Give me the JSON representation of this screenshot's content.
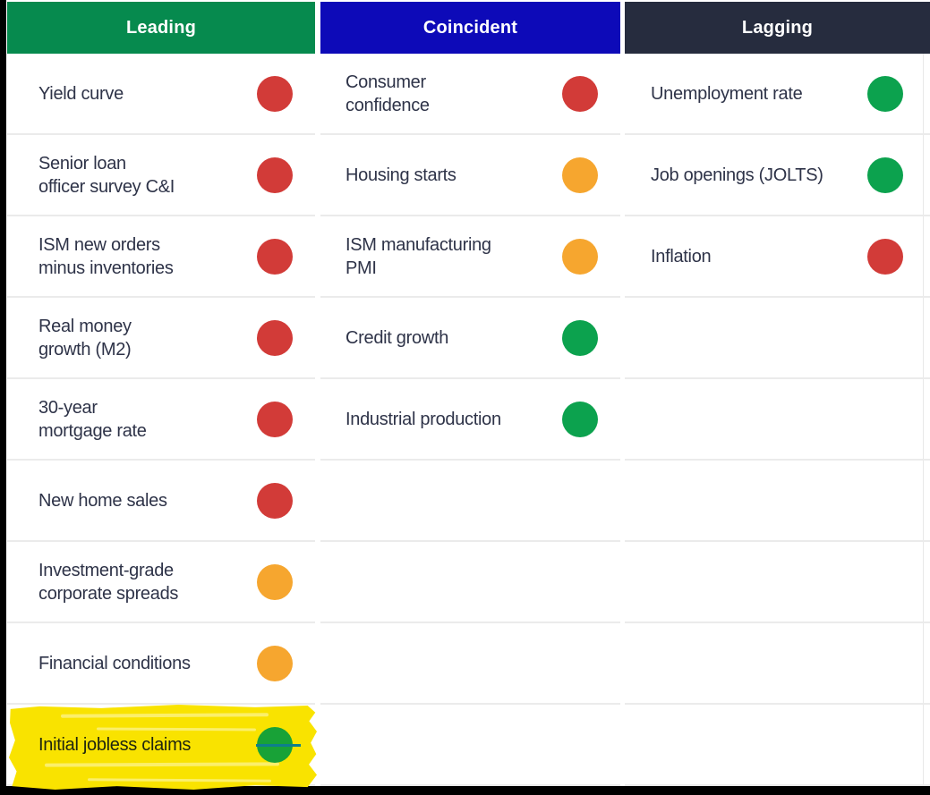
{
  "chart_data": {
    "type": "table",
    "columns": [
      {
        "header": "Leading",
        "header_color": "#068a4e",
        "indicators": [
          {
            "label": "Yield curve",
            "status": "red"
          },
          {
            "label": "Senior loan\nofficer survey C&I",
            "status": "red"
          },
          {
            "label": "ISM new orders\nminus inventories",
            "status": "red"
          },
          {
            "label": "Real money\ngrowth (M2)",
            "status": "red"
          },
          {
            "label": "30-year\nmortgage rate",
            "status": "red"
          },
          {
            "label": "New home sales",
            "status": "red"
          },
          {
            "label": "Investment-grade\ncorporate spreads",
            "status": "amber"
          },
          {
            "label": "Financial conditions",
            "status": "amber"
          },
          {
            "label": "Initial jobless claims",
            "status": "green",
            "highlighted": true
          }
        ]
      },
      {
        "header": "Coincident",
        "header_color": "#0d0ab8",
        "indicators": [
          {
            "label": "Consumer\nconfidence",
            "status": "red"
          },
          {
            "label": "Housing starts",
            "status": "amber"
          },
          {
            "label": "ISM manufacturing\nPMI",
            "status": "amber"
          },
          {
            "label": "Credit growth",
            "status": "green"
          },
          {
            "label": "Industrial production",
            "status": "green"
          }
        ]
      },
      {
        "header": "Lagging",
        "header_color": "#262c3e",
        "indicators": [
          {
            "label": "Unemployment rate",
            "status": "green"
          },
          {
            "label": "Job openings (JOLTS)",
            "status": "green"
          },
          {
            "label": "Inflation",
            "status": "red"
          }
        ]
      }
    ],
    "status_colors": {
      "red": "#d23b38",
      "amber": "#f6a62f",
      "green": "#0ca24e"
    },
    "highlight": {
      "label": "Initial jobless claims",
      "column": "Leading",
      "color": "#f9e300",
      "dot_color": "#18a237",
      "overlap_stripe_color": "#0e7e8c",
      "text_color": "#20260f"
    }
  }
}
